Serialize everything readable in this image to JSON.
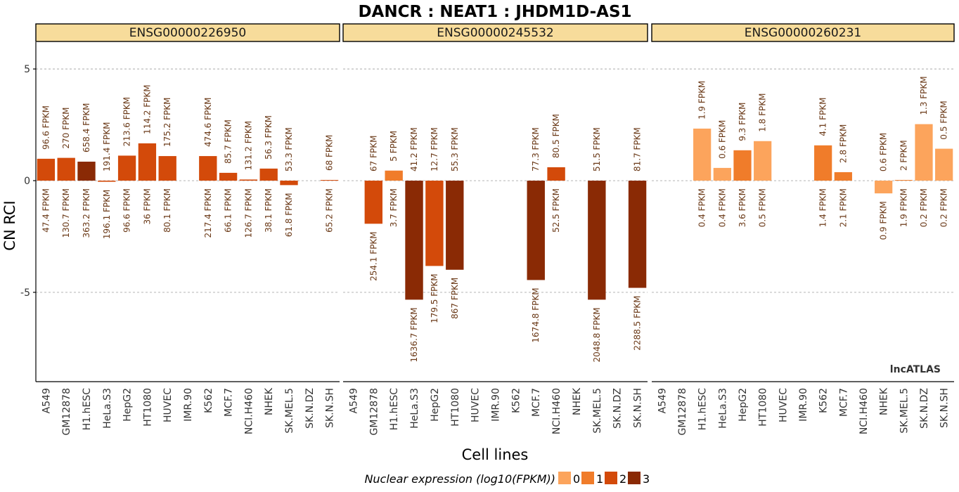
{
  "chart_data": {
    "type": "bar",
    "title": "DANCR : NEAT1 : JHDM1D-AS1",
    "xlabel": "Cell lines",
    "ylabel": "CN RCI",
    "ylim": [
      -9,
      6.2
    ],
    "yticks": [
      -5,
      0,
      5
    ],
    "grid": true,
    "watermark": "lncATLAS",
    "categories": [
      "A549",
      "GM12878",
      "H1.hESC",
      "HeLa.S3",
      "HepG2",
      "HT1080",
      "HUVEC",
      "IMR.90",
      "K562",
      "MCF.7",
      "NCI.H460",
      "NHEK",
      "SK.MEL.5",
      "SK.N.DZ",
      "SK.N.SH"
    ],
    "legend": {
      "title": "Nuclear expression (log10(FPKM))",
      "placement": "bottom",
      "entries": [
        {
          "label": "0",
          "color": "#fca45c"
        },
        {
          "label": "1",
          "color": "#f07c2a"
        },
        {
          "label": "2",
          "color": "#d34a0a"
        },
        {
          "label": "3",
          "color": "#8a2a05"
        }
      ]
    },
    "panels": [
      {
        "name": "ENSG00000226950",
        "values": [
          0.98,
          1.02,
          0.85,
          -0.05,
          1.12,
          1.67,
          1.1,
          null,
          1.1,
          0.35,
          0.05,
          0.54,
          -0.2,
          null,
          0.03
        ],
        "level": [
          2,
          2,
          3,
          2,
          2,
          2,
          2,
          null,
          2,
          2,
          2,
          2,
          2,
          null,
          2
        ],
        "cyto_fpkm": [
          "96.6 FPKM",
          "270 FPKM",
          "658.4 FPKM",
          "191.4 FPKM",
          "213.6 FPKM",
          "114.2 FPKM",
          "175.2 FPKM",
          "",
          "474.6 FPKM",
          "85.7 FPKM",
          "131.2 FPKM",
          "56.3 FPKM",
          "53.3 FPKM",
          "",
          "68 FPKM"
        ],
        "nuc_fpkm": [
          "47.4 FPKM",
          "130.7 FPKM",
          "363.2 FPKM",
          "196.1 FPKM",
          "96.6 FPKM",
          "36 FPKM",
          "80.1 FPKM",
          "",
          "217.4 FPKM",
          "66.1 FPKM",
          "126.7 FPKM",
          "38.1 FPKM",
          "61.8 FPKM",
          "",
          "65.2 FPKM"
        ]
      },
      {
        "name": "ENSG00000245532",
        "values": [
          null,
          -1.93,
          0.45,
          -5.33,
          -3.82,
          -3.99,
          null,
          null,
          null,
          -4.45,
          0.6,
          null,
          -5.33,
          null,
          -4.8
        ],
        "level": [
          null,
          2,
          1,
          3,
          2,
          3,
          null,
          null,
          null,
          3,
          2,
          null,
          3,
          null,
          3
        ],
        "cyto_fpkm": [
          "",
          "67 FPKM",
          "5 FPKM",
          "41.2 FPKM",
          "12.7 FPKM",
          "55.3 FPKM",
          "",
          "",
          "",
          "77.3 FPKM",
          "80.5 FPKM",
          "",
          "51.5 FPKM",
          "",
          "81.7 FPKM"
        ],
        "nuc_fpkm": [
          "",
          "254.1 FPKM",
          "3.7 FPKM",
          "1636.7 FPKM",
          "179.5 FPKM",
          "867 FPKM",
          "",
          "",
          "",
          "1674.8 FPKM",
          "52.5 FPKM",
          "",
          "2048.8 FPKM",
          "",
          "2288.5 FPKM"
        ]
      },
      {
        "name": "ENSG00000260231",
        "values": [
          null,
          null,
          2.33,
          0.57,
          1.36,
          1.77,
          null,
          null,
          1.58,
          0.38,
          null,
          -0.57,
          0.03,
          2.53,
          1.43
        ],
        "level": [
          null,
          null,
          0,
          0,
          1,
          0,
          null,
          null,
          1,
          1,
          null,
          0,
          1,
          0,
          0
        ],
        "cyto_fpkm": [
          "",
          "",
          "1.9 FPKM",
          "0.6 FPKM",
          "9.3 FPKM",
          "1.8 FPKM",
          "",
          "",
          "4.1 FPKM",
          "2.8 FPKM",
          "",
          "0.6 FPKM",
          "2 FPKM",
          "1.3 FPKM",
          "0.5 FPKM"
        ],
        "nuc_fpkm": [
          "",
          "",
          "0.4 FPKM",
          "0.4 FPKM",
          "3.6 FPKM",
          "0.5 FPKM",
          "",
          "",
          "1.4 FPKM",
          "2.1 FPKM",
          "",
          "0.9 FPKM",
          "1.9 FPKM",
          "0.2 FPKM",
          "0.2 FPKM"
        ]
      }
    ]
  }
}
